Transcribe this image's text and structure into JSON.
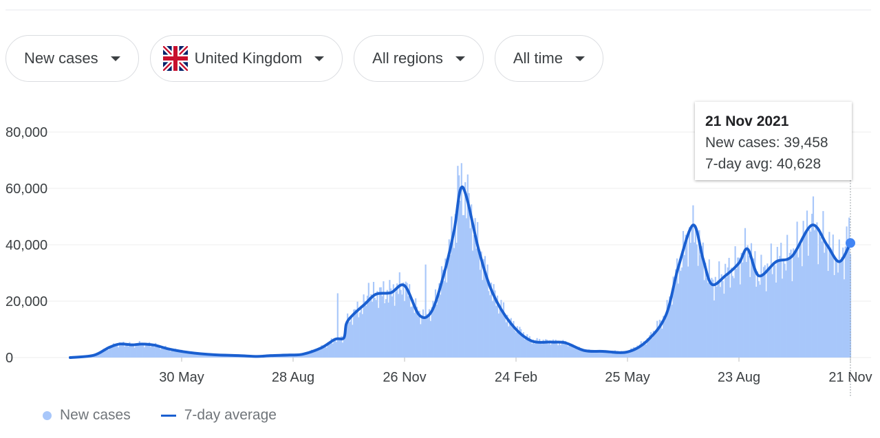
{
  "filters": {
    "metric": "New cases",
    "country": "United Kingdom",
    "region": "All regions",
    "period": "All time"
  },
  "colors": {
    "bars": "#a8c7fa",
    "line": "#1a5fd0",
    "marker": "#4285f4"
  },
  "tooltip": {
    "date": "21 Nov 2021",
    "new_cases_line": "New cases: 39,458",
    "avg_line": "7-day avg: 40,628"
  },
  "legend": {
    "bars": "New cases",
    "line": "7-day average"
  },
  "chart_data": {
    "type": "bar+line",
    "y_ticks": [
      0,
      20000,
      40000,
      60000,
      80000
    ],
    "y_tick_labels": [
      "0",
      "20,000",
      "40,000",
      "60,000",
      "80,000"
    ],
    "ylim": [
      0,
      80000
    ],
    "x_tick_labels": [
      "30 May",
      "28 Aug",
      "26 Nov",
      "24 Feb",
      "25 May",
      "23 Aug",
      "21 Nov"
    ],
    "x_tick_dates": [
      "2020-05-30",
      "2020-08-28",
      "2020-11-26",
      "2021-02-24",
      "2021-05-25",
      "2021-08-23",
      "2021-11-21"
    ],
    "x_range": [
      "2020-03-01",
      "2021-11-21"
    ],
    "grid": true,
    "legend_position": "bottom-left",
    "series": [
      {
        "name": "7-day average",
        "kind": "line",
        "points": [
          [
            "2020-03-01",
            0
          ],
          [
            "2020-03-20",
            800
          ],
          [
            "2020-04-01",
            3500
          ],
          [
            "2020-04-10",
            4800
          ],
          [
            "2020-04-20",
            4500
          ],
          [
            "2020-04-28",
            4800
          ],
          [
            "2020-05-08",
            4400
          ],
          [
            "2020-05-20",
            3000
          ],
          [
            "2020-06-05",
            1800
          ],
          [
            "2020-06-25",
            1000
          ],
          [
            "2020-07-15",
            700
          ],
          [
            "2020-07-30",
            400
          ],
          [
            "2020-08-10",
            700
          ],
          [
            "2020-08-25",
            900
          ],
          [
            "2020-09-05",
            1200
          ],
          [
            "2020-09-20",
            3500
          ],
          [
            "2020-10-01",
            6500
          ],
          [
            "2020-10-08",
            7000
          ],
          [
            "2020-10-10",
            12000
          ],
          [
            "2020-10-15",
            15000
          ],
          [
            "2020-10-25",
            19000
          ],
          [
            "2020-11-03",
            22500
          ],
          [
            "2020-11-15",
            23000
          ],
          [
            "2020-11-26",
            25500
          ],
          [
            "2020-12-08",
            15000
          ],
          [
            "2020-12-18",
            16500
          ],
          [
            "2020-12-28",
            30000
          ],
          [
            "2021-01-05",
            45000
          ],
          [
            "2021-01-10",
            59500
          ],
          [
            "2021-01-15",
            57000
          ],
          [
            "2021-01-25",
            38000
          ],
          [
            "2021-02-05",
            23000
          ],
          [
            "2021-02-20",
            12000
          ],
          [
            "2021-03-08",
            6000
          ],
          [
            "2021-03-25",
            5500
          ],
          [
            "2021-04-05",
            5200
          ],
          [
            "2021-04-20",
            2500
          ],
          [
            "2021-05-05",
            2200
          ],
          [
            "2021-05-25",
            2000
          ],
          [
            "2021-06-10",
            6000
          ],
          [
            "2021-06-25",
            15000
          ],
          [
            "2021-07-05",
            32000
          ],
          [
            "2021-07-17",
            47000
          ],
          [
            "2021-07-25",
            35000
          ],
          [
            "2021-08-01",
            26000
          ],
          [
            "2021-08-12",
            29000
          ],
          [
            "2021-08-23",
            33500
          ],
          [
            "2021-08-30",
            38500
          ],
          [
            "2021-09-08",
            29000
          ],
          [
            "2021-09-22",
            34000
          ],
          [
            "2021-10-05",
            36000
          ],
          [
            "2021-10-21",
            47000
          ],
          [
            "2021-11-02",
            40000
          ],
          [
            "2021-11-12",
            34000
          ],
          [
            "2021-11-21",
            40628
          ]
        ]
      },
      {
        "name": "New cases",
        "kind": "bar",
        "spikes": [
          [
            "2020-10-03",
            22800
          ],
          [
            "2020-10-28",
            26500
          ],
          [
            "2020-12-13",
            33000
          ],
          [
            "2021-01-08",
            68000
          ],
          [
            "2021-07-17",
            54000
          ],
          [
            "2021-10-21",
            51000
          ],
          [
            "2021-11-18",
            46500
          ]
        ]
      }
    ]
  }
}
